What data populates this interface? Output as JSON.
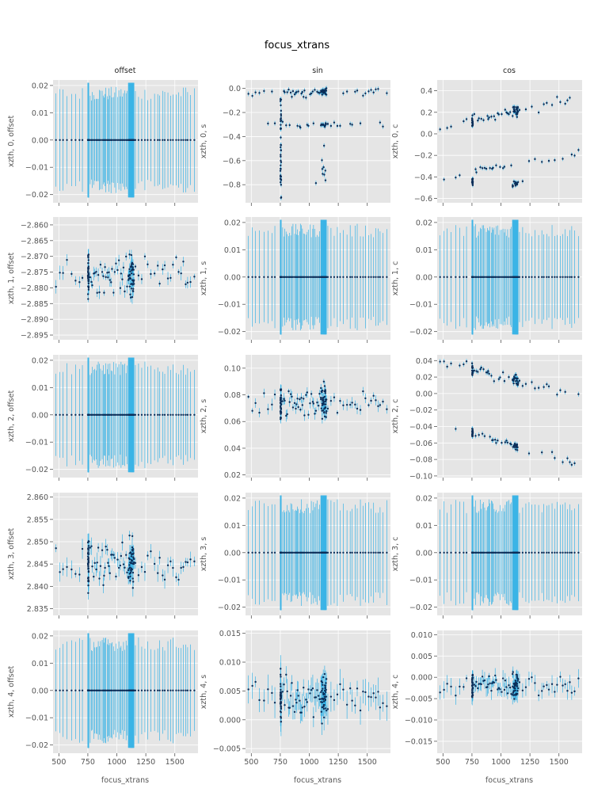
{
  "figure": {
    "title": "focus_xtrans",
    "col_titles": [
      "offset",
      "sin",
      "cos"
    ],
    "xlabel": "focus_xtrans",
    "colors": {
      "background": "#E5E5E5",
      "grid": "#FFFFFF",
      "errorbar": "#3BB4E6",
      "point": "#0B2E59"
    }
  },
  "chart_data": [
    {
      "type": "scatter",
      "ylabel": "xzth, 0, offset",
      "xlim": [
        450,
        1700
      ],
      "ylim": [
        -0.023,
        0.022
      ],
      "xticks": [
        500,
        750,
        1000,
        1250,
        1500
      ],
      "xticklabels": [
        "",
        "",
        "",
        "",
        ""
      ],
      "yticks": [
        -0.02,
        -0.01,
        0.0,
        0.01,
        0.02
      ],
      "yticklabels": [
        "−0.02",
        "−0.01",
        "0.00",
        "0.01",
        "0.02"
      ],
      "pattern": "flat",
      "center": 0,
      "err": 0.017,
      "err_dense": 0.021
    },
    {
      "type": "scatter",
      "ylabel": "xzth, 0, s",
      "xlim": [
        450,
        1700
      ],
      "ylim": [
        -0.95,
        0.07
      ],
      "xticks": [
        500,
        750,
        1000,
        1250,
        1500
      ],
      "xticklabels": [
        "",
        "",
        "",
        "",
        ""
      ],
      "yticks": [
        -0.8,
        -0.6,
        -0.4,
        -0.2,
        0.0
      ],
      "yticklabels": [
        "−0.8",
        "−0.6",
        "−0.4",
        "−0.2",
        "0.0"
      ],
      "pattern": "sin0",
      "err": 0.02
    },
    {
      "type": "scatter",
      "ylabel": "xzth, 0, c",
      "xlim": [
        450,
        1700
      ],
      "ylim": [
        -0.64,
        0.5
      ],
      "xticks": [
        500,
        750,
        1000,
        1250,
        1500
      ],
      "xticklabels": [
        "",
        "",
        "",
        "",
        ""
      ],
      "yticks": [
        -0.6,
        -0.4,
        -0.2,
        0.0,
        0.2,
        0.4
      ],
      "yticklabels": [
        "−0.6",
        "−0.4",
        "−0.2",
        "0.0",
        "0.2",
        "0.4"
      ],
      "pattern": "cos0",
      "err": 0.02
    },
    {
      "type": "scatter",
      "ylabel": "xzth, 1, offset",
      "xlim": [
        450,
        1700
      ],
      "ylim": [
        -2.8965,
        -2.8575
      ],
      "xticks": [
        500,
        750,
        1000,
        1250,
        1500
      ],
      "xticklabels": [
        "",
        "",
        "",
        "",
        ""
      ],
      "yticks": [
        -2.895,
        -2.89,
        -2.885,
        -2.88,
        -2.875,
        -2.87,
        -2.865,
        -2.86
      ],
      "yticklabels": [
        "−2.895",
        "−2.890",
        "−2.885",
        "−2.880",
        "−2.875",
        "−2.870",
        "−2.865",
        "−2.860"
      ],
      "pattern": "scatter",
      "center": -2.876,
      "spread": 0.0045,
      "err": 0.0015
    },
    {
      "type": "scatter",
      "ylabel": "xzth, 1, s",
      "xlim": [
        450,
        1700
      ],
      "ylim": [
        -0.023,
        0.022
      ],
      "xticks": [
        500,
        750,
        1000,
        1250,
        1500
      ],
      "xticklabels": [
        "",
        "",
        "",
        "",
        ""
      ],
      "yticks": [
        -0.02,
        -0.01,
        0.0,
        0.01,
        0.02
      ],
      "yticklabels": [
        "−0.02",
        "−0.01",
        "0.00",
        "0.01",
        "0.02"
      ],
      "pattern": "flat",
      "center": 0,
      "err": 0.017,
      "err_dense": 0.021
    },
    {
      "type": "scatter",
      "ylabel": "xzth, 1, c",
      "xlim": [
        450,
        1700
      ],
      "ylim": [
        -0.023,
        0.022
      ],
      "xticks": [
        500,
        750,
        1000,
        1250,
        1500
      ],
      "xticklabels": [
        "",
        "",
        "",
        "",
        ""
      ],
      "yticks": [
        -0.02,
        -0.01,
        0.0,
        0.01,
        0.02
      ],
      "yticklabels": [
        "−0.02",
        "−0.01",
        "0.00",
        "0.01",
        "0.02"
      ],
      "pattern": "flat",
      "center": 0,
      "err": 0.017,
      "err_dense": 0.021
    },
    {
      "type": "scatter",
      "ylabel": "xzth, 2, offset",
      "xlim": [
        450,
        1700
      ],
      "ylim": [
        -0.023,
        0.022
      ],
      "xticks": [
        500,
        750,
        1000,
        1250,
        1500
      ],
      "xticklabels": [
        "",
        "",
        "",
        "",
        ""
      ],
      "yticks": [
        -0.02,
        -0.01,
        0.0,
        0.01,
        0.02
      ],
      "yticklabels": [
        "−0.02",
        "−0.01",
        "0.00",
        "0.01",
        "0.02"
      ],
      "pattern": "flat",
      "center": 0,
      "err": 0.017,
      "err_dense": 0.021
    },
    {
      "type": "scatter",
      "ylabel": "xzth, 2, s",
      "xlim": [
        450,
        1700
      ],
      "ylim": [
        0.018,
        0.11
      ],
      "xticks": [
        500,
        750,
        1000,
        1250,
        1500
      ],
      "xticklabels": [
        "",
        "",
        "",
        "",
        ""
      ],
      "yticks": [
        0.02,
        0.04,
        0.06,
        0.08,
        0.1
      ],
      "yticklabels": [
        "0.02",
        "0.04",
        "0.06",
        "0.08",
        "0.10"
      ],
      "pattern": "scatter",
      "center": 0.073,
      "spread": 0.009,
      "err": 0.003
    },
    {
      "type": "scatter",
      "ylabel": "xzth, 2, c",
      "xlim": [
        450,
        1700
      ],
      "ylim": [
        -0.102,
        0.047
      ],
      "xticks": [
        500,
        750,
        1000,
        1250,
        1500
      ],
      "xticklabels": [
        "",
        "",
        "",
        "",
        ""
      ],
      "yticks": [
        -0.1,
        -0.08,
        -0.06,
        -0.04,
        -0.02,
        0.0,
        0.02,
        0.04
      ],
      "yticklabels": [
        "−0.10",
        "−0.08",
        "−0.06",
        "−0.04",
        "−0.02",
        "0.00",
        "0.02",
        "0.04"
      ],
      "pattern": "cos2",
      "err": 0.003
    },
    {
      "type": "scatter",
      "ylabel": "xzth, 3, offset",
      "xlim": [
        450,
        1700
      ],
      "ylim": [
        2.8335,
        2.861
      ],
      "xticks": [
        500,
        750,
        1000,
        1250,
        1500
      ],
      "xticklabels": [
        "",
        "",
        "",
        "",
        ""
      ],
      "yticks": [
        2.835,
        2.84,
        2.845,
        2.85,
        2.855,
        2.86
      ],
      "yticklabels": [
        "2.835",
        "2.840",
        "2.845",
        "2.850",
        "2.855",
        "2.860"
      ],
      "pattern": "scatter",
      "center": 2.845,
      "spread": 0.0035,
      "err": 0.0015
    },
    {
      "type": "scatter",
      "ylabel": "xzth, 3, s",
      "xlim": [
        450,
        1700
      ],
      "ylim": [
        -0.023,
        0.022
      ],
      "xticks": [
        500,
        750,
        1000,
        1250,
        1500
      ],
      "xticklabels": [
        "",
        "",
        "",
        "",
        ""
      ],
      "yticks": [
        -0.02,
        -0.01,
        0.0,
        0.01,
        0.02
      ],
      "yticklabels": [
        "−0.02",
        "−0.01",
        "0.00",
        "0.01",
        "0.02"
      ],
      "pattern": "flat",
      "center": 0,
      "err": 0.017,
      "err_dense": 0.021
    },
    {
      "type": "scatter",
      "ylabel": "xzth, 3, c",
      "xlim": [
        450,
        1700
      ],
      "ylim": [
        -0.023,
        0.022
      ],
      "xticks": [
        500,
        750,
        1000,
        1250,
        1500
      ],
      "xticklabels": [
        "",
        "",
        "",
        "",
        ""
      ],
      "yticks": [
        -0.02,
        -0.01,
        0.0,
        0.01,
        0.02
      ],
      "yticklabels": [
        "−0.02",
        "−0.01",
        "0.00",
        "0.01",
        "0.02"
      ],
      "pattern": "flat",
      "center": 0,
      "err": 0.017,
      "err_dense": 0.021
    },
    {
      "type": "scatter",
      "ylabel": "xzth, 4, offset",
      "xlim": [
        450,
        1700
      ],
      "ylim": [
        -0.023,
        0.022
      ],
      "xticks": [
        500,
        750,
        1000,
        1250,
        1500
      ],
      "xticklabels": [
        "500",
        "750",
        "1000",
        "1250",
        "1500"
      ],
      "yticks": [
        -0.02,
        -0.01,
        0.0,
        0.01,
        0.02
      ],
      "yticklabels": [
        "−0.02",
        "−0.01",
        "0.00",
        "0.01",
        "0.02"
      ],
      "pattern": "flat",
      "center": 0,
      "err": 0.017,
      "err_dense": 0.021
    },
    {
      "type": "scatter",
      "ylabel": "xzth, 4, s",
      "xlim": [
        450,
        1700
      ],
      "ylim": [
        -0.0058,
        0.0155
      ],
      "xticks": [
        500,
        750,
        1000,
        1250,
        1500
      ],
      "xticklabels": [
        "500",
        "750",
        "1000",
        "1250",
        "1500"
      ],
      "yticks": [
        -0.005,
        0.0,
        0.005,
        0.01,
        0.015
      ],
      "yticklabels": [
        "−0.005",
        "0.000",
        "0.005",
        "0.010",
        "0.015"
      ],
      "pattern": "scatter",
      "center": 0.004,
      "spread": 0.0025,
      "err": 0.0018
    },
    {
      "type": "scatter",
      "ylabel": "xzth, 4, c",
      "xlim": [
        450,
        1700
      ],
      "ylim": [
        -0.0178,
        0.011
      ],
      "xticks": [
        500,
        750,
        1000,
        1250,
        1500
      ],
      "xticklabels": [
        "500",
        "750",
        "1000",
        "1250",
        "1500"
      ],
      "yticks": [
        -0.015,
        -0.01,
        -0.005,
        0.0,
        0.005,
        0.01
      ],
      "yticklabels": [
        "−0.015",
        "−0.010",
        "−0.005",
        "0.000",
        "0.005",
        "0.010"
      ],
      "pattern": "scatter",
      "center": -0.002,
      "spread": 0.002,
      "err": 0.0015
    }
  ]
}
